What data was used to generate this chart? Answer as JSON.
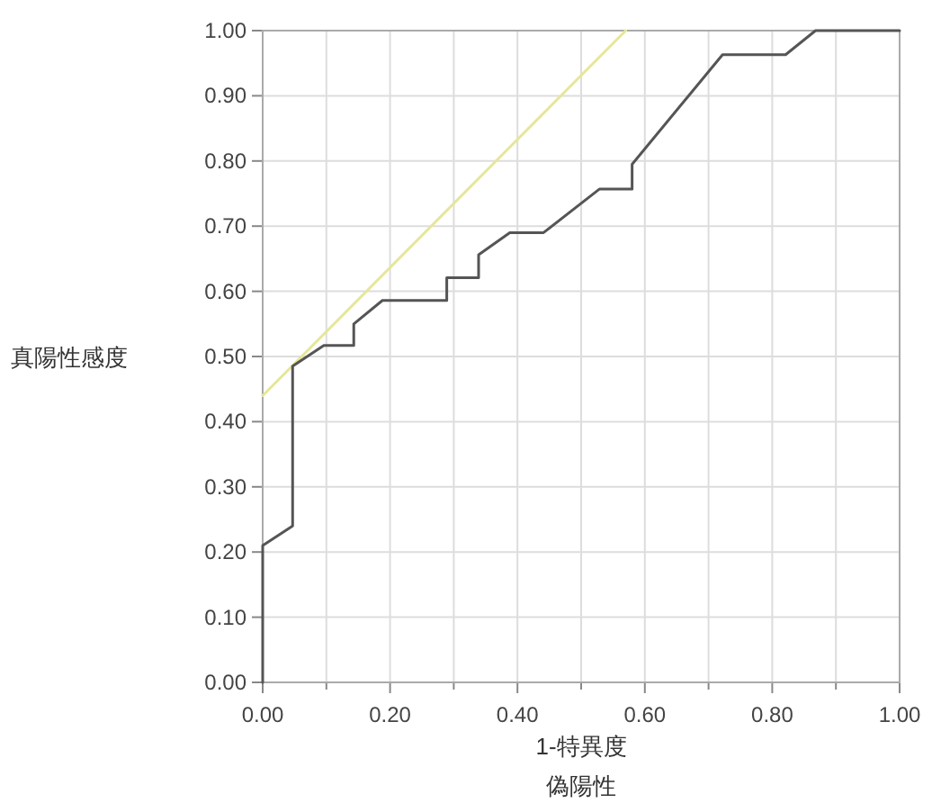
{
  "chart_data": {
    "type": "line",
    "xlabel": "1-特異度",
    "annotations": [
      "偽陽性"
    ],
    "ylabel": "真陽性感度",
    "xlim": [
      0,
      1
    ],
    "ylim": [
      0,
      1
    ],
    "xticks": [
      {
        "value": 0,
        "label": "0.00"
      },
      {
        "value": 0.1,
        "label": null
      },
      {
        "value": 0.2,
        "label": "0.20"
      },
      {
        "value": 0.3,
        "label": null
      },
      {
        "value": 0.4,
        "label": "0.40"
      },
      {
        "value": 0.5,
        "label": null
      },
      {
        "value": 0.6,
        "label": "0.60"
      },
      {
        "value": 0.7,
        "label": null
      },
      {
        "value": 0.8,
        "label": "0.80"
      },
      {
        "value": 0.9,
        "label": null
      },
      {
        "value": 1,
        "label": "1.00"
      }
    ],
    "yticks": [
      {
        "value": 0,
        "label": "0.00"
      },
      {
        "value": 0.1,
        "label": "0.10"
      },
      {
        "value": 0.2,
        "label": "0.20"
      },
      {
        "value": 0.3,
        "label": "0.30"
      },
      {
        "value": 0.4,
        "label": "0.40"
      },
      {
        "value": 0.5,
        "label": "0.50"
      },
      {
        "value": 0.6,
        "label": "0.60"
      },
      {
        "value": 0.7,
        "label": "0.70"
      },
      {
        "value": 0.8,
        "label": "0.80"
      },
      {
        "value": 0.9,
        "label": "0.90"
      },
      {
        "value": 1,
        "label": "1.00"
      }
    ],
    "grid": true,
    "marker": "none",
    "line_style": "solid",
    "series": [
      {
        "color": "#e6e69a",
        "x": [
          0,
          0.57
        ],
        "values": [
          0.44,
          1.0
        ]
      },
      {
        "color": "#555555",
        "x": [
          0,
          0,
          0.047,
          0.047,
          0.096,
          0.143,
          0.143,
          0.188,
          0.289,
          0.289,
          0.339,
          0.339,
          0.388,
          0.441,
          0.529,
          0.58,
          0.58,
          0.722,
          0.821,
          0.868,
          1.0
        ],
        "values": [
          0,
          0.21,
          0.24,
          0.485,
          0.517,
          0.517,
          0.55,
          0.586,
          0.586,
          0.621,
          0.621,
          0.656,
          0.69,
          0.69,
          0.757,
          0.757,
          0.795,
          0.963,
          0.963,
          1.0,
          1.0
        ]
      }
    ]
  }
}
